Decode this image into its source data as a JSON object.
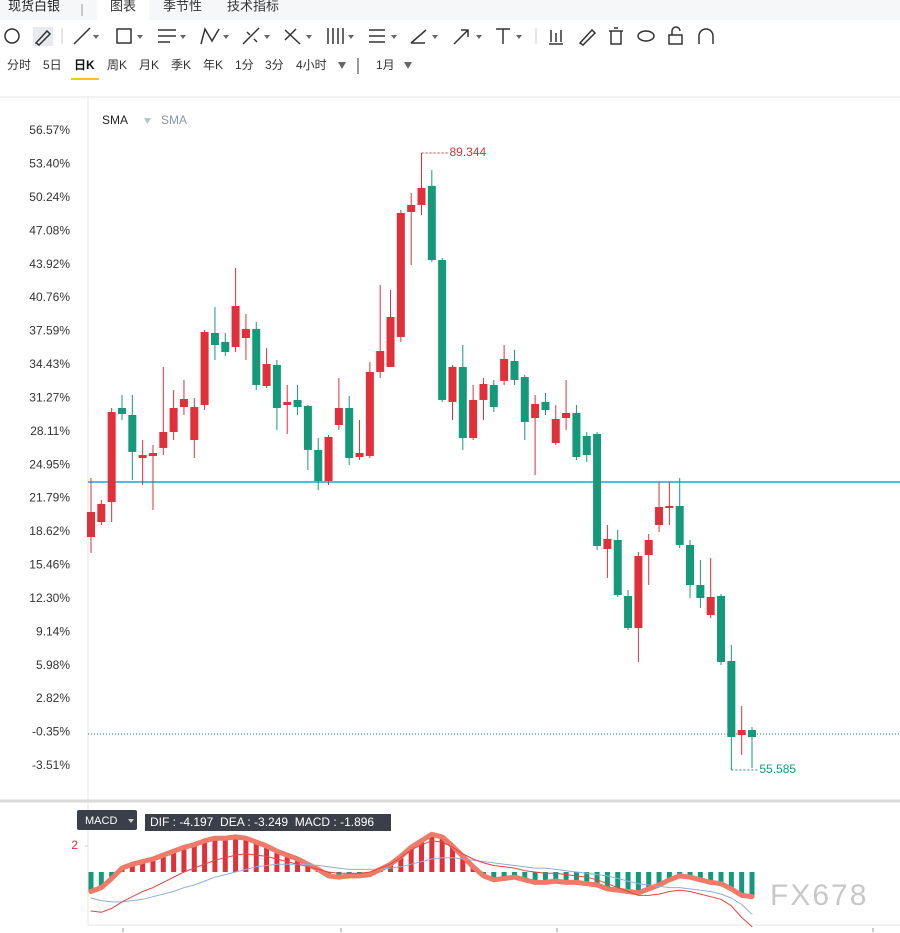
{
  "header": {
    "tabs": [
      "现货白银",
      "图表",
      "季节性",
      "技术指标"
    ],
    "active_tab": 1
  },
  "timeframes": [
    "分时",
    "5日",
    "日K",
    "周K",
    "月K",
    "季K",
    "年K",
    "1分",
    "3分",
    "4小时"
  ],
  "active_timeframe": 2,
  "range": "1月",
  "watermark": "FX678",
  "chart_data": [
    {
      "type": "candlestick",
      "indicators": [
        "SMA",
        "SMA"
      ],
      "grid": false,
      "ylim": [
        -6.73,
        59.69
      ],
      "yticks": [
        {
          "value": 56.57,
          "label": "56.57%"
        },
        {
          "value": 53.4,
          "label": "53.40%"
        },
        {
          "value": 50.24,
          "label": "50.24%"
        },
        {
          "value": 47.08,
          "label": "47.08%"
        },
        {
          "value": 43.92,
          "label": "43.92%"
        },
        {
          "value": 40.76,
          "label": "40.76%"
        },
        {
          "value": 37.59,
          "label": "37.59%"
        },
        {
          "value": 34.43,
          "label": "34.43%"
        },
        {
          "value": 31.27,
          "label": "31.27%"
        },
        {
          "value": 28.11,
          "label": "28.11%"
        },
        {
          "value": 24.95,
          "label": "24.95%"
        },
        {
          "value": 21.79,
          "label": "21.79%"
        },
        {
          "value": 18.62,
          "label": "18.62%"
        },
        {
          "value": 15.46,
          "label": "15.46%"
        },
        {
          "value": 12.3,
          "label": "12.30%"
        },
        {
          "value": 9.14,
          "label": "9.14%"
        },
        {
          "value": 5.98,
          "label": "5.98%"
        },
        {
          "value": 2.82,
          "label": "2.82%"
        },
        {
          "value": -0.35,
          "label": "-0.35%"
        },
        {
          "value": -3.51,
          "label": "-3.51%"
        }
      ],
      "up_color": "#e0313b",
      "down_color": "#149a7b",
      "open": [
        18.15,
        19.57,
        21.47,
        30.36,
        29.7,
        25.63,
        25.82,
        26.58,
        28.09,
        30.45,
        27.33,
        30.64,
        37.46,
        36.61,
        36.13,
        36.98,
        37.84,
        32.44,
        34.43,
        30.64,
        31.12,
        30.55,
        26.39,
        23.45,
        28.75,
        30.36,
        25.72,
        25.82,
        33.77,
        34.24,
        37.08,
        48.91,
        49.57,
        51.37,
        44.36,
        30.93,
        34.24,
        27.52,
        31.12,
        32.54,
        32.92,
        34.81,
        33.29,
        29.41,
        30.93,
        27.05,
        29.41,
        29.89,
        27.71,
        27.9,
        17.02,
        17.87,
        12.57,
        9.54,
        16.45,
        19.29,
        20.9,
        21.09,
        17.4,
        13.61,
        10.77,
        12.57,
        6.42,
        -0.58,
        -0.11
      ],
      "high": [
        23.74,
        21.66,
        30.36,
        31.59,
        31.59,
        27.33,
        26.86,
        34.24,
        32.06,
        33.01,
        31.31,
        37.74,
        39.92,
        37.46,
        43.61,
        39.25,
        38.5,
        36.04,
        34.9,
        32.54,
        32.54,
        30.64,
        27.52,
        27.81,
        33.2,
        31.5,
        29.22,
        34.71,
        42.0,
        41.53,
        49.09,
        50.7,
        54.49,
        52.88,
        44.55,
        34.43,
        36.32,
        32.54,
        33.2,
        33.01,
        36.32,
        35.85,
        33.48,
        31.59,
        31.78,
        30.64,
        33.01,
        30.64,
        28.09,
        28.09,
        19.29,
        18.82,
        13.14,
        16.74,
        18.44,
        23.36,
        23.36,
        23.74,
        17.87,
        15.98,
        16.17,
        12.76,
        7.94,
        2.16,
        0.18
      ],
      "low": [
        16.64,
        19.29,
        19.57,
        29.22,
        23.55,
        23.07,
        20.71,
        25.91,
        27.33,
        29.7,
        25.63,
        30.17,
        34.9,
        35.28,
        35.66,
        34.9,
        32.06,
        32.25,
        28.28,
        27.9,
        29.7,
        24.49,
        22.6,
        23.07,
        28.28,
        24.97,
        25.44,
        25.63,
        33.2,
        34.43,
        36.61,
        43.89,
        48.62,
        44.18,
        30.93,
        29.22,
        26.39,
        27.33,
        29.22,
        29.98,
        32.54,
        32.54,
        27.33,
        24.02,
        29.7,
        26.86,
        28.28,
        25.44,
        25.25,
        16.92,
        14.28,
        12.48,
        9.35,
        6.33,
        13.61,
        18.63,
        19.29,
        17.11,
        12.38,
        11.44,
        10.49,
        6.04,
        -3.89,
        -2.47,
        -3.7
      ],
      "close": [
        20.52,
        21.28,
        29.98,
        29.79,
        26.2,
        25.91,
        26.1,
        28.09,
        30.36,
        31.21,
        30.45,
        37.55,
        36.32,
        35.66,
        40.01,
        37.84,
        32.54,
        34.52,
        30.36,
        30.93,
        30.45,
        26.39,
        23.45,
        27.62,
        30.36,
        25.63,
        26.1,
        33.77,
        35.75,
        38.97,
        48.81,
        49.57,
        51.18,
        44.36,
        31.12,
        34.24,
        27.52,
        31.12,
        32.63,
        30.45,
        35.0,
        33.01,
        29.04,
        30.74,
        30.17,
        29.32,
        29.89,
        25.72,
        25.91,
        17.3,
        17.97,
        12.67,
        9.54,
        16.36,
        17.87,
        20.99,
        21.09,
        17.4,
        13.61,
        12.38,
        12.48,
        6.33,
        -0.77,
        -0.11,
        -0.77
      ],
      "hlines": [
        {
          "value": 23.36,
          "color": "#1aa3e0",
          "dashed": false
        },
        {
          "value": -0.48,
          "color": "#1a8a6a",
          "dashed": true
        }
      ],
      "max_label": "89.344",
      "min_label": "55.585"
    },
    {
      "type": "macd",
      "label": "MACD",
      "legend": "DIF : -4.197  DEA : -3.249  MACD : -1.896",
      "ylim": [
        -3.69,
        5.15
      ],
      "yticks": [
        2
      ],
      "histogram": {
        "up_color": "#e0313b",
        "down_color": "#149a7b",
        "outline_color": "#f07a68",
        "values": [
          -1.5,
          -1.2,
          -0.5,
          0.3,
          0.6,
          0.8,
          1.0,
          1.3,
          1.6,
          1.9,
          2.1,
          2.4,
          2.6,
          2.6,
          2.7,
          2.6,
          2.3,
          2.0,
          1.6,
          1.3,
          1.0,
          0.6,
          0.2,
          -0.3,
          -0.4,
          -0.3,
          -0.3,
          -0.2,
          0.2,
          0.6,
          1.2,
          1.9,
          2.4,
          2.9,
          2.7,
          2.0,
          1.2,
          0.4,
          -0.3,
          -0.6,
          -0.5,
          -0.4,
          -0.6,
          -0.8,
          -0.8,
          -0.7,
          -0.8,
          -0.8,
          -0.9,
          -1.0,
          -1.3,
          -1.4,
          -1.5,
          -1.6,
          -1.3,
          -1.0,
          -0.6,
          -0.3,
          -0.4,
          -0.6,
          -0.8,
          -0.9,
          -1.3,
          -1.8,
          -1.896
        ]
      },
      "dif": {
        "color": "#e8453c",
        "values": [
          -3.0,
          -3.1,
          -2.8,
          -2.3,
          -1.9,
          -1.5,
          -1.2,
          -0.8,
          -0.4,
          0.0,
          0.3,
          0.6,
          0.9,
          1.1,
          1.3,
          1.4,
          1.3,
          1.2,
          1.0,
          0.8,
          0.6,
          0.4,
          0.2,
          0.0,
          -0.1,
          -0.1,
          -0.1,
          0.0,
          0.3,
          0.6,
          1.1,
          1.7,
          2.1,
          2.4,
          2.3,
          1.9,
          1.4,
          1.0,
          0.7,
          0.5,
          0.4,
          0.3,
          0.1,
          0.0,
          -0.1,
          -0.1,
          -0.2,
          -0.3,
          -0.4,
          -0.6,
          -0.9,
          -1.2,
          -1.5,
          -1.8,
          -1.8,
          -1.7,
          -1.5,
          -1.4,
          -1.5,
          -1.7,
          -1.9,
          -2.1,
          -2.6,
          -3.5,
          -4.197
        ]
      },
      "dea": {
        "color": "#8fb0d8",
        "values": [
          -2.0,
          -2.2,
          -2.3,
          -2.3,
          -2.2,
          -2.1,
          -1.9,
          -1.7,
          -1.5,
          -1.2,
          -1.0,
          -0.7,
          -0.4,
          -0.2,
          0.0,
          0.2,
          0.4,
          0.5,
          0.6,
          0.6,
          0.6,
          0.6,
          0.5,
          0.4,
          0.3,
          0.2,
          0.2,
          0.2,
          0.2,
          0.3,
          0.4,
          0.6,
          0.8,
          1.0,
          1.1,
          1.1,
          1.0,
          0.9,
          0.8,
          0.7,
          0.6,
          0.5,
          0.4,
          0.3,
          0.3,
          0.2,
          0.1,
          0.0,
          -0.1,
          -0.2,
          -0.3,
          -0.5,
          -0.7,
          -0.9,
          -1.0,
          -1.1,
          -1.2,
          -1.2,
          -1.3,
          -1.4,
          -1.5,
          -1.7,
          -2.0,
          -2.5,
          -3.249
        ]
      }
    }
  ]
}
